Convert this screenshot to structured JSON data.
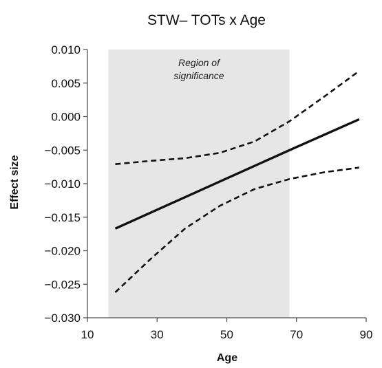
{
  "chart_data": {
    "type": "line",
    "title": "STW– TOTs x Age",
    "xlabel": "Age",
    "ylabel": "Effect size",
    "xlim": [
      10,
      90
    ],
    "ylim": [
      -0.03,
      0.01
    ],
    "x_ticks": [
      "10",
      "30",
      "50",
      "70",
      "90"
    ],
    "y_ticks": [
      "0.010",
      "0.005",
      "0.000",
      "−0.005",
      "−0.010",
      "−0.015",
      "−0.020",
      "−0.025",
      "−0.030"
    ],
    "region": {
      "x_start": 16,
      "x_end": 68,
      "label_lines": [
        "Region of",
        "significance"
      ],
      "color": "#e6e6e6"
    },
    "series": [
      {
        "style": "solid",
        "x": [
          18,
          68,
          88
        ],
        "y": [
          -0.0167,
          -0.005,
          -0.0004
        ]
      },
      {
        "style": "dashed",
        "x": [
          18,
          28,
          38,
          48,
          58,
          68,
          78,
          88
        ],
        "y": [
          -0.0071,
          -0.0066,
          -0.0062,
          -0.0054,
          -0.0037,
          -0.0007,
          0.003,
          0.0068
        ]
      },
      {
        "style": "dashed",
        "x": [
          18,
          28,
          38,
          48,
          58,
          68,
          78,
          88
        ],
        "y": [
          -0.0262,
          -0.0213,
          -0.0167,
          -0.0133,
          -0.0108,
          -0.0093,
          -0.0083,
          -0.0076
        ]
      }
    ]
  }
}
